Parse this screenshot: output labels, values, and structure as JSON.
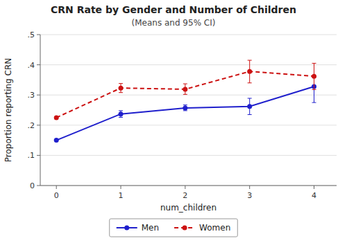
{
  "chart_data": {
    "type": "line",
    "title": "CRN Rate by Gender and Number of Children",
    "subtitle": "(Means and 95% CI)",
    "x_label": "num_children",
    "y_label": "Proportion reporting CRN",
    "x": [
      0,
      1,
      2,
      3,
      4
    ],
    "series": [
      {
        "name": "Men",
        "color": "#1f1fcc",
        "line_style": "solid",
        "marker": "circle",
        "values": [
          0.15,
          0.237,
          0.257,
          0.262,
          0.328
        ],
        "ci_lo": [
          0.15,
          0.226,
          0.248,
          0.235,
          0.275
        ],
        "ci_hi": [
          0.15,
          0.248,
          0.267,
          0.289,
          0.36
        ]
      },
      {
        "name": "Women",
        "color": "#cc1111",
        "line_style": "dashed",
        "marker": "circle",
        "values": [
          0.225,
          0.323,
          0.319,
          0.378,
          0.362
        ],
        "ci_lo": [
          0.225,
          0.308,
          0.302,
          0.34,
          0.318
        ],
        "ci_hi": [
          0.225,
          0.338,
          0.337,
          0.415,
          0.405
        ]
      }
    ],
    "xlim": [
      -0.25,
      4.35
    ],
    "xticks": [
      0,
      1,
      2,
      3,
      4
    ],
    "ylim": [
      0,
      0.5
    ],
    "yticks": [
      0,
      {
        "value": 0.1,
        "label": ".1"
      },
      {
        "value": 0.2,
        "label": ".2"
      },
      {
        "value": 0.3,
        "label": ".3"
      },
      {
        "value": 0.4,
        "label": ".4"
      },
      {
        "value": 0.5,
        "label": ".5"
      }
    ],
    "grid": true,
    "legend": "bottom"
  }
}
